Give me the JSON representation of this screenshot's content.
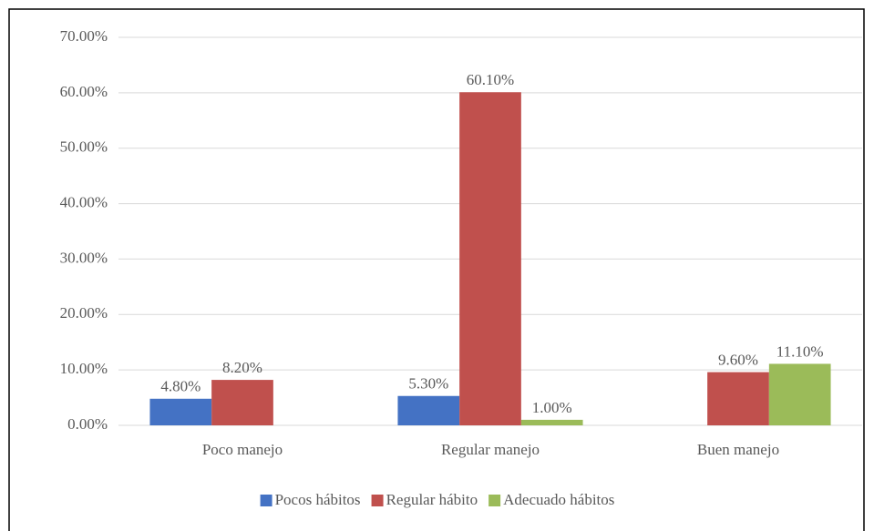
{
  "chart_data": {
    "type": "bar",
    "categories": [
      "Poco manejo",
      "Regular manejo",
      "Buen manejo"
    ],
    "series": [
      {
        "name": "Pocos hábitos",
        "color": "#4472c4",
        "values": [
          4.8,
          5.3,
          null
        ],
        "value_labels": [
          "4.80%",
          "5.30%",
          null
        ]
      },
      {
        "name": "Regular hábito",
        "color": "#c0504d",
        "values": [
          8.2,
          60.1,
          9.6
        ],
        "value_labels": [
          "8.20%",
          "60.10%",
          "9.60%"
        ]
      },
      {
        "name": "Adecuado hábitos",
        "color": "#9bbb59",
        "values": [
          null,
          1.0,
          11.1
        ],
        "value_labels": [
          null,
          "1.00%",
          "11.10%"
        ]
      }
    ],
    "ylim": [
      0,
      70
    ],
    "yticks": [
      {
        "value": 0,
        "label": "0.00%"
      },
      {
        "value": 10,
        "label": "10.00%"
      },
      {
        "value": 20,
        "label": "20.00%"
      },
      {
        "value": 30,
        "label": "30.00%"
      },
      {
        "value": 40,
        "label": "40.00%"
      },
      {
        "value": 50,
        "label": "50.00%"
      },
      {
        "value": 60,
        "label": "60.00%"
      },
      {
        "value": 70,
        "label": "70.00%"
      }
    ],
    "grid": true,
    "legend": "bottom"
  }
}
